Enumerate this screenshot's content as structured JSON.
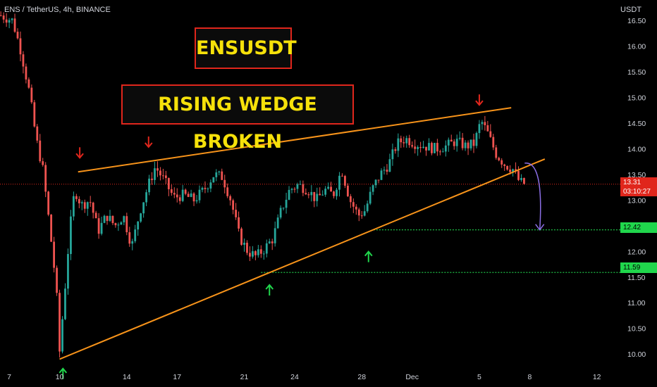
{
  "header": {
    "symbol_line": "ENS / TetherUS, 4h, BINANCE",
    "unit": "USDT"
  },
  "title_boxes": {
    "ticker": "ENSUSDT",
    "pattern": "RISING WEDGE BROKEN"
  },
  "tags": {
    "last_price": "13.31",
    "countdown": "03:10:27",
    "support_1": "12.42",
    "support_2": "11.59"
  },
  "chart_data": {
    "type": "candlestick",
    "y_ticks": [
      10.0,
      10.5,
      11.0,
      11.5,
      12.0,
      12.5,
      13.0,
      13.5,
      14.0,
      14.5,
      15.0,
      15.5,
      16.0,
      16.5
    ],
    "ylim": [
      9.7,
      16.9
    ],
    "x_ticks": [
      {
        "label": "7",
        "day": 7
      },
      {
        "label": "10",
        "day": 10
      },
      {
        "label": "14",
        "day": 14
      },
      {
        "label": "17",
        "day": 17
      },
      {
        "label": "21",
        "day": 21
      },
      {
        "label": "24",
        "day": 24
      },
      {
        "label": "28",
        "day": 28
      },
      {
        "label": "Dec",
        "day": 31
      },
      {
        "label": "5",
        "day": 35
      },
      {
        "label": "8",
        "day": 38
      },
      {
        "label": "12",
        "day": 42
      }
    ],
    "xlim": [
      6.45,
      43.4
    ],
    "colors": {
      "up": "#26a69a",
      "down": "#ef5350",
      "wedge": "#f7931a",
      "support": "#22d64d",
      "projection": "#8c6fe6",
      "price_line": "#e0261c",
      "arrow_down": "#e0261c",
      "arrow_up": "#20d64c"
    },
    "path_points": [
      [
        6.5,
        16.6
      ],
      [
        7.2,
        16.5
      ],
      [
        7.7,
        15.9
      ],
      [
        8.2,
        15.1
      ],
      [
        8.6,
        14.2
      ],
      [
        9.0,
        13.6
      ],
      [
        9.4,
        12.5
      ],
      [
        9.8,
        11.3
      ],
      [
        10.0,
        10.05
      ],
      [
        10.3,
        11.2
      ],
      [
        10.6,
        12.4
      ],
      [
        10.9,
        13.2
      ],
      [
        11.3,
        12.9
      ],
      [
        11.8,
        13.0
      ],
      [
        12.3,
        12.4
      ],
      [
        12.8,
        12.7
      ],
      [
        13.3,
        12.5
      ],
      [
        13.8,
        12.7
      ],
      [
        14.3,
        12.1
      ],
      [
        14.8,
        12.8
      ],
      [
        15.3,
        13.3
      ],
      [
        15.7,
        13.65
      ],
      [
        16.2,
        13.4
      ],
      [
        16.8,
        13.05
      ],
      [
        17.4,
        13.1
      ],
      [
        18.0,
        13.0
      ],
      [
        18.6,
        13.2
      ],
      [
        19.2,
        13.5
      ],
      [
        19.7,
        13.45
      ],
      [
        20.2,
        13.0
      ],
      [
        20.7,
        12.3
      ],
      [
        21.2,
        12.0
      ],
      [
        21.7,
        11.9
      ],
      [
        22.2,
        12.05
      ],
      [
        22.7,
        12.25
      ],
      [
        23.2,
        12.8
      ],
      [
        23.7,
        13.2
      ],
      [
        24.2,
        13.3
      ],
      [
        24.8,
        13.2
      ],
      [
        25.3,
        13.0
      ],
      [
        25.8,
        13.2
      ],
      [
        26.3,
        13.1
      ],
      [
        26.8,
        13.6
      ],
      [
        27.3,
        13.0
      ],
      [
        27.8,
        12.7
      ],
      [
        28.2,
        12.8
      ],
      [
        28.6,
        13.2
      ],
      [
        29.1,
        13.5
      ],
      [
        29.6,
        13.7
      ],
      [
        30.1,
        14.1
      ],
      [
        30.6,
        14.2
      ],
      [
        31.2,
        14.1
      ],
      [
        31.8,
        14.05
      ],
      [
        32.4,
        14.0
      ],
      [
        33.0,
        14.05
      ],
      [
        33.6,
        14.15
      ],
      [
        34.2,
        14.05
      ],
      [
        34.7,
        14.1
      ],
      [
        35.1,
        14.55
      ],
      [
        35.5,
        14.3
      ],
      [
        36.0,
        13.9
      ],
      [
        36.5,
        13.7
      ],
      [
        37.0,
        13.6
      ],
      [
        37.4,
        13.35
      ],
      [
        37.8,
        13.31
      ]
    ],
    "wedge_upper": [
      [
        11.1,
        13.55
      ],
      [
        36.9,
        14.8
      ]
    ],
    "wedge_lower": [
      [
        10.0,
        9.9
      ],
      [
        38.9,
        13.8
      ]
    ],
    "projection": [
      [
        37.7,
        13.72
      ],
      [
        38.6,
        12.42
      ]
    ],
    "supports": [
      {
        "value": 12.42,
        "from_day": 28.7
      },
      {
        "value": 11.59,
        "from_day": 22.0
      }
    ],
    "last_price": 13.31,
    "down_arrows": [
      [
        11.2,
        13.92
      ],
      [
        15.3,
        14.13
      ],
      [
        35.0,
        14.95
      ]
    ],
    "up_arrows": [
      [
        10.2,
        9.62
      ],
      [
        22.5,
        11.25
      ],
      [
        28.4,
        11.9
      ]
    ]
  }
}
